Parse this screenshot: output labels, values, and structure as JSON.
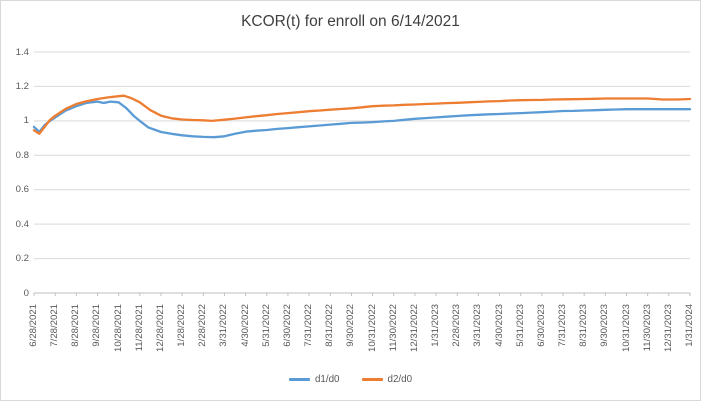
{
  "window": {
    "background": "#FFFFFF",
    "border_color": "#D9D9D9"
  },
  "chart": {
    "title_color": "#3F3F3F",
    "axis_text_color": "#595959",
    "gridline_color": "#D9D9D9",
    "axis_line_color": "#BFBFBF"
  },
  "chart_data": {
    "type": "line",
    "title": "KCOR(t) for enroll on 6/14/2021",
    "xlabel": "",
    "ylabel": "",
    "ylim": [
      0,
      1.4
    ],
    "y_ticks": [
      "0",
      "0.2",
      "0.4",
      "0.6",
      "0.8",
      "1",
      "1.2",
      "1.4"
    ],
    "grid": "horizontal",
    "legend_position": "bottom",
    "categories": [
      "6/28/2021",
      "7/28/2021",
      "8/28/2021",
      "9/28/2021",
      "10/28/2021",
      "11/28/2021",
      "12/28/2021",
      "1/28/2022",
      "2/28/2022",
      "3/31/2022",
      "4/30/2022",
      "5/31/2022",
      "6/30/2022",
      "7/31/2022",
      "8/31/2022",
      "9/30/2022",
      "10/31/2022",
      "11/30/2022",
      "12/31/2022",
      "1/31/2023",
      "2/28/2023",
      "3/31/2023",
      "4/30/2023",
      "5/31/2023",
      "6/30/2023",
      "7/31/2023",
      "8/31/2023",
      "9/30/2023",
      "10/31/2023",
      "11/30/2023",
      "12/31/2023",
      "1/31/2024"
    ],
    "series": [
      {
        "name": "d1/d0",
        "color": "#5B9BD5",
        "values_at_ticks": [
          0.965,
          1.02,
          1.085,
          1.112,
          1.108,
          1.0,
          0.935,
          0.916,
          0.907,
          0.91,
          0.937,
          0.947,
          0.958,
          0.968,
          0.978,
          0.988,
          0.993,
          1.0,
          1.012,
          1.02,
          1.028,
          1.035,
          1.04,
          1.045,
          1.05,
          1.057,
          1.06,
          1.064,
          1.068,
          1.068,
          1.068,
          1.068
        ],
        "points": [
          [
            0,
            0.965
          ],
          [
            0.25,
            0.935
          ],
          [
            0.5,
            0.975
          ],
          [
            0.75,
            1.0
          ],
          [
            1,
            1.02
          ],
          [
            1.5,
            1.06
          ],
          [
            2,
            1.085
          ],
          [
            2.5,
            1.105
          ],
          [
            3,
            1.112
          ],
          [
            3.3,
            1.104
          ],
          [
            3.6,
            1.112
          ],
          [
            4,
            1.108
          ],
          [
            4.35,
            1.075
          ],
          [
            4.7,
            1.03
          ],
          [
            5,
            1.0
          ],
          [
            5.4,
            0.962
          ],
          [
            6,
            0.935
          ],
          [
            6.5,
            0.925
          ],
          [
            7,
            0.916
          ],
          [
            7.5,
            0.91
          ],
          [
            8,
            0.907
          ],
          [
            8.5,
            0.905
          ],
          [
            9,
            0.91
          ],
          [
            9.5,
            0.925
          ],
          [
            10,
            0.937
          ],
          [
            10.5,
            0.943
          ],
          [
            11,
            0.947
          ],
          [
            11.5,
            0.953
          ],
          [
            12,
            0.958
          ],
          [
            12.5,
            0.963
          ],
          [
            13,
            0.968
          ],
          [
            13.5,
            0.973
          ],
          [
            14,
            0.978
          ],
          [
            14.5,
            0.983
          ],
          [
            15,
            0.988
          ],
          [
            15.5,
            0.99
          ],
          [
            16,
            0.993
          ],
          [
            16.5,
            0.997
          ],
          [
            17,
            1.0
          ],
          [
            17.5,
            1.006
          ],
          [
            18,
            1.012
          ],
          [
            18.5,
            1.016
          ],
          [
            19,
            1.02
          ],
          [
            19.5,
            1.024
          ],
          [
            20,
            1.028
          ],
          [
            20.5,
            1.032
          ],
          [
            21,
            1.035
          ],
          [
            21.5,
            1.038
          ],
          [
            22,
            1.04
          ],
          [
            22.5,
            1.043
          ],
          [
            23,
            1.045
          ],
          [
            23.5,
            1.048
          ],
          [
            24,
            1.05
          ],
          [
            24.5,
            1.054
          ],
          [
            25,
            1.057
          ],
          [
            25.5,
            1.058
          ],
          [
            26,
            1.06
          ],
          [
            26.5,
            1.062
          ],
          [
            27,
            1.064
          ],
          [
            27.5,
            1.066
          ],
          [
            28,
            1.068
          ],
          [
            29,
            1.068
          ],
          [
            30,
            1.068
          ],
          [
            31,
            1.068
          ]
        ]
      },
      {
        "name": "d2/d0",
        "color": "#ED7D31",
        "values_at_ticks": [
          0.945,
          1.03,
          1.098,
          1.127,
          1.143,
          1.108,
          1.03,
          1.008,
          1.003,
          1.007,
          1.02,
          1.033,
          1.045,
          1.056,
          1.065,
          1.073,
          1.085,
          1.09,
          1.095,
          1.1,
          1.105,
          1.11,
          1.115,
          1.12,
          1.122,
          1.125,
          1.127,
          1.13,
          1.13,
          1.13,
          1.124,
          1.127
        ],
        "points": [
          [
            0,
            0.945
          ],
          [
            0.25,
            0.925
          ],
          [
            0.5,
            0.965
          ],
          [
            0.75,
            1.005
          ],
          [
            1,
            1.03
          ],
          [
            1.5,
            1.07
          ],
          [
            2,
            1.098
          ],
          [
            2.5,
            1.115
          ],
          [
            3,
            1.127
          ],
          [
            3.5,
            1.136
          ],
          [
            4,
            1.143
          ],
          [
            4.25,
            1.146
          ],
          [
            4.6,
            1.132
          ],
          [
            5,
            1.108
          ],
          [
            5.5,
            1.062
          ],
          [
            6,
            1.03
          ],
          [
            6.5,
            1.015
          ],
          [
            7,
            1.008
          ],
          [
            7.5,
            1.005
          ],
          [
            8,
            1.003
          ],
          [
            8.4,
            1.0
          ],
          [
            9,
            1.007
          ],
          [
            9.5,
            1.013
          ],
          [
            10,
            1.02
          ],
          [
            10.5,
            1.027
          ],
          [
            11,
            1.033
          ],
          [
            11.5,
            1.04
          ],
          [
            12,
            1.045
          ],
          [
            12.5,
            1.05
          ],
          [
            13,
            1.056
          ],
          [
            13.5,
            1.06
          ],
          [
            14,
            1.065
          ],
          [
            14.5,
            1.069
          ],
          [
            15,
            1.073
          ],
          [
            15.5,
            1.079
          ],
          [
            16,
            1.085
          ],
          [
            16.5,
            1.088
          ],
          [
            17,
            1.09
          ],
          [
            17.5,
            1.093
          ],
          [
            18,
            1.095
          ],
          [
            18.5,
            1.098
          ],
          [
            19,
            1.1
          ],
          [
            19.5,
            1.103
          ],
          [
            20,
            1.105
          ],
          [
            20.5,
            1.108
          ],
          [
            21,
            1.11
          ],
          [
            21.5,
            1.113
          ],
          [
            22,
            1.115
          ],
          [
            22.5,
            1.118
          ],
          [
            23,
            1.12
          ],
          [
            23.5,
            1.121
          ],
          [
            24,
            1.122
          ],
          [
            24.5,
            1.124
          ],
          [
            25,
            1.125
          ],
          [
            25.5,
            1.126
          ],
          [
            26,
            1.127
          ],
          [
            26.5,
            1.128
          ],
          [
            27,
            1.13
          ],
          [
            28,
            1.13
          ],
          [
            29,
            1.13
          ],
          [
            29.7,
            1.124
          ],
          [
            30.4,
            1.124
          ],
          [
            31,
            1.127
          ]
        ]
      }
    ]
  },
  "legend": {
    "items": [
      {
        "label": "d1/d0",
        "color": "#5B9BD5"
      },
      {
        "label": "d2/d0",
        "color": "#ED7D31"
      }
    ]
  }
}
